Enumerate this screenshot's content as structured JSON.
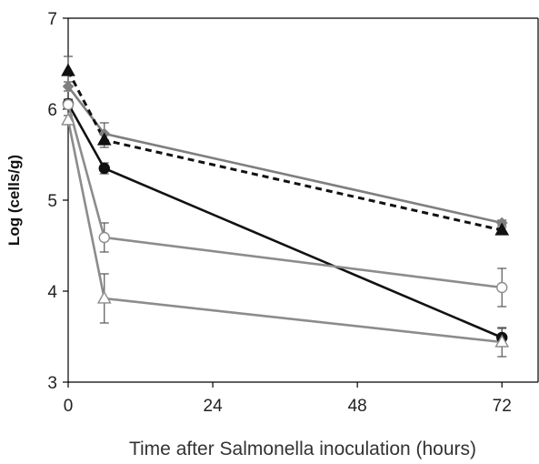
{
  "chart_data": {
    "type": "line",
    "title": "",
    "xlabel": "Time after Salmonella inoculation (hours)",
    "ylabel": "Log (cells/g)",
    "xlim": [
      0,
      78
    ],
    "ylim": [
      3,
      7
    ],
    "x_ticks": [
      0,
      24,
      48,
      72
    ],
    "x_tick_labels": [
      "0",
      "24",
      "48",
      "72"
    ],
    "y_ticks": [
      3,
      4,
      5,
      6,
      7
    ],
    "y_tick_labels": [
      "3",
      "4",
      "5",
      "6",
      "7"
    ],
    "grid": false,
    "legend": "none",
    "x": [
      0,
      6,
      72
    ],
    "series": [
      {
        "values": [
          6.25,
          5.73,
          4.75
        ],
        "errors": [
          0.05,
          0.12,
          0.03
        ],
        "color": "#7f7f7f",
        "line_style": "solid",
        "marker": "diamond",
        "marker_fill": "#7f7f7f"
      },
      {
        "values": [
          6.42,
          5.66,
          4.67
        ],
        "errors": [
          0.16,
          0.08,
          0.03
        ],
        "color": "#111111",
        "line_style": "dashed",
        "marker": "triangle",
        "marker_fill": "#111111"
      },
      {
        "values": [
          6.06,
          5.35,
          3.49
        ],
        "errors": [
          0.05,
          0.06,
          0.1
        ],
        "color": "#111111",
        "line_style": "solid",
        "marker": "circle",
        "marker_fill": "#111111"
      },
      {
        "values": [
          6.05,
          4.59,
          4.04
        ],
        "errors": [
          0.05,
          0.16,
          0.21
        ],
        "color": "#8c8c8c",
        "line_style": "solid",
        "marker": "circle",
        "marker_fill": "#ffffff"
      },
      {
        "values": [
          5.88,
          3.92,
          3.44
        ],
        "errors": [
          0.05,
          0.27,
          0.16
        ],
        "color": "#8c8c8c",
        "line_style": "solid",
        "marker": "triangle",
        "marker_fill": "#ffffff"
      }
    ]
  }
}
